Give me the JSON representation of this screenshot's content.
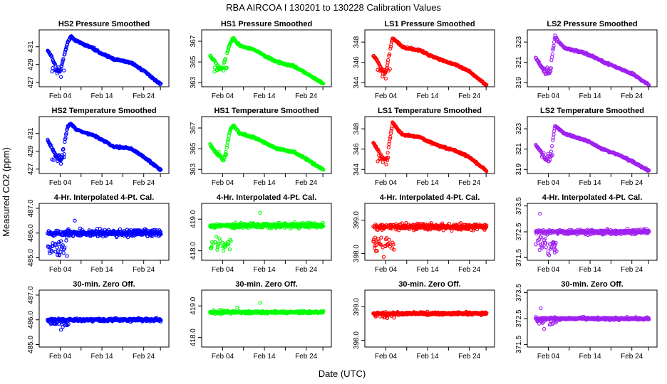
{
  "figure": {
    "title": "RBA   AIRCOA I   130201 to 130228   Calibration Values",
    "ylabel": "Measured CO2 (ppm)",
    "xlabel": "Date (UTC)"
  },
  "colors": {
    "HS2": "#0000ff",
    "HS1": "#00ff00",
    "LS1": "#ff0000",
    "LS2": "#a020f0"
  },
  "chart_data": [
    {
      "type": "scatter",
      "title": "HS2 Pressure Smoothed",
      "row": 0,
      "col": 0,
      "series": "HS2",
      "color_key": "HS2",
      "pattern": "smoothed",
      "x_ticks": [
        "Feb 04",
        "Feb 14",
        "Feb 24"
      ],
      "y_ticks": [
        "427",
        "429",
        "431"
      ],
      "ylim": [
        426.5,
        432.9
      ],
      "knots": [
        [
          1,
          430.6
        ],
        [
          2,
          429.8
        ],
        [
          3.3,
          428.4
        ],
        [
          4,
          428.2
        ],
        [
          5.6,
          431.2
        ],
        [
          6.5,
          432.2
        ],
        [
          8,
          431.6
        ],
        [
          12,
          430.8
        ],
        [
          14,
          430.2
        ],
        [
          17,
          429.6
        ],
        [
          21,
          429.2
        ],
        [
          24,
          428.3
        ],
        [
          28,
          426.8
        ]
      ],
      "dip": [
        [
          2.2,
          428.6
        ],
        [
          3.3,
          428
        ],
        [
          4.2,
          427.6
        ]
      ],
      "dip_level": 428.4
    },
    {
      "type": "scatter",
      "title": "HS1 Pressure Smoothed",
      "row": 0,
      "col": 1,
      "series": "HS1",
      "color_key": "HS1",
      "pattern": "smoothed",
      "x_ticks": [
        "Feb 04",
        "Feb 14",
        "Feb 24"
      ],
      "y_ticks": [
        "363",
        "365",
        "367"
      ],
      "ylim": [
        362.6,
        368.1
      ],
      "knots": [
        [
          1,
          365.6
        ],
        [
          2,
          365.1
        ],
        [
          3.3,
          364.4
        ],
        [
          4,
          364.4
        ],
        [
          5.6,
          366.6
        ],
        [
          6.5,
          367.3
        ],
        [
          8,
          366.6
        ],
        [
          12,
          366.1
        ],
        [
          14,
          365.6
        ],
        [
          17,
          365
        ],
        [
          21,
          364.6
        ],
        [
          24,
          363.9
        ],
        [
          28,
          362.9
        ]
      ],
      "dip": [],
      "dip_level": 364.4
    },
    {
      "type": "scatter",
      "title": "LS1 Pressure Smoothed",
      "row": 0,
      "col": 2,
      "series": "LS1",
      "color_key": "LS1",
      "pattern": "smoothed",
      "x_ticks": [
        "Feb 04",
        "Feb 14",
        "Feb 24"
      ],
      "y_ticks": [
        "344",
        "346",
        "348"
      ],
      "ylim": [
        343.6,
        349.2
      ],
      "knots": [
        [
          1,
          346.7
        ],
        [
          2,
          346.1
        ],
        [
          3.3,
          345.1
        ],
        [
          4,
          345
        ],
        [
          5.6,
          348.4
        ],
        [
          6.5,
          348.1
        ],
        [
          8,
          347.5
        ],
        [
          12,
          347.2
        ],
        [
          14,
          346.8
        ],
        [
          17,
          346.3
        ],
        [
          21,
          345.7
        ],
        [
          24,
          345.1
        ],
        [
          28,
          343.8
        ]
      ],
      "dip": [
        [
          3.2,
          344.6
        ],
        [
          4,
          344.4
        ]
      ],
      "dip_level": 345.1
    },
    {
      "type": "scatter",
      "title": "LS2 Pressure Smoothed",
      "row": 0,
      "col": 3,
      "series": "LS2",
      "color_key": "LS2",
      "pattern": "smoothed",
      "x_ticks": [
        "Feb 04",
        "Feb 14",
        "Feb 24"
      ],
      "y_ticks": [
        "319",
        "321",
        "323"
      ],
      "ylim": [
        318.6,
        324.2
      ],
      "knots": [
        [
          1,
          321.5
        ],
        [
          2,
          320.8
        ],
        [
          3.3,
          319.9
        ],
        [
          4.3,
          319.9
        ],
        [
          5.6,
          323.6
        ],
        [
          6.5,
          323
        ],
        [
          8,
          322.4
        ],
        [
          12,
          322
        ],
        [
          14,
          321.7
        ],
        [
          17,
          321.1
        ],
        [
          21,
          320.4
        ],
        [
          24,
          319.9
        ],
        [
          28,
          318.8
        ]
      ],
      "dip": [],
      "dip_level": 320.3
    },
    {
      "type": "scatter",
      "title": "HS2 Temperature Smoothed",
      "row": 1,
      "col": 0,
      "series": "HS2",
      "color_key": "HS2",
      "pattern": "smoothed",
      "x_ticks": [
        "Feb 04",
        "Feb 14",
        "Feb 24"
      ],
      "y_ticks": [
        "427",
        "429",
        "431"
      ],
      "ylim": [
        426.5,
        432.9
      ],
      "knots": [
        [
          1,
          430.2
        ],
        [
          2,
          429.4
        ],
        [
          3.3,
          428.2
        ],
        [
          4.2,
          428
        ],
        [
          5.8,
          431.8
        ],
        [
          6.6,
          432.1
        ],
        [
          8,
          431.4
        ],
        [
          12,
          430.8
        ],
        [
          14,
          430.3
        ],
        [
          17,
          429.5
        ],
        [
          21,
          429.3
        ],
        [
          24,
          428.4
        ],
        [
          28,
          426.9
        ]
      ],
      "dip": [
        [
          2.4,
          428
        ],
        [
          3.4,
          427.9
        ],
        [
          4.2,
          427.6
        ]
      ],
      "dip_level": 428.4
    },
    {
      "type": "scatter",
      "title": "HS1 Temperature Smoothed",
      "row": 1,
      "col": 1,
      "series": "HS1",
      "color_key": "HS1",
      "pattern": "smoothed",
      "x_ticks": [
        "Feb 04",
        "Feb 14",
        "Feb 24"
      ],
      "y_ticks": [
        "363",
        "365",
        "367"
      ],
      "ylim": [
        362.6,
        368.1
      ],
      "knots": [
        [
          1,
          365.4
        ],
        [
          2,
          364.8
        ],
        [
          3.3,
          364.3
        ],
        [
          4.3,
          363.8
        ],
        [
          5.8,
          366.8
        ],
        [
          6.5,
          367.3
        ],
        [
          8,
          366.5
        ],
        [
          12,
          366
        ],
        [
          14,
          365.6
        ],
        [
          17,
          365
        ],
        [
          21,
          364.7
        ],
        [
          24,
          364
        ],
        [
          28,
          363
        ]
      ],
      "dip": [],
      "dip_level": 364.4
    },
    {
      "type": "scatter",
      "title": "LS1 Temperature Smoothed",
      "row": 1,
      "col": 2,
      "series": "LS1",
      "color_key": "LS1",
      "pattern": "smoothed",
      "x_ticks": [
        "Feb 04",
        "Feb 14",
        "Feb 24"
      ],
      "y_ticks": [
        "344",
        "346",
        "348"
      ],
      "ylim": [
        343.6,
        349.2
      ],
      "knots": [
        [
          1,
          346.6
        ],
        [
          2,
          346
        ],
        [
          3.3,
          345.1
        ],
        [
          4.2,
          345
        ],
        [
          5.6,
          348.6
        ],
        [
          6.5,
          348.1
        ],
        [
          8,
          347.4
        ],
        [
          12,
          347.2
        ],
        [
          14,
          346.8
        ],
        [
          17,
          346.3
        ],
        [
          21,
          345.8
        ],
        [
          24,
          345.2
        ],
        [
          28,
          343.9
        ]
      ],
      "dip": [
        [
          3.3,
          344.7
        ],
        [
          4.1,
          344.5
        ]
      ],
      "dip_level": 345.1
    },
    {
      "type": "scatter",
      "title": "LS2 Temperature Smoothed",
      "row": 1,
      "col": 3,
      "series": "LS2",
      "color_key": "LS2",
      "pattern": "smoothed",
      "x_ticks": [
        "Feb 04",
        "Feb 14",
        "Feb 24"
      ],
      "y_ticks": [
        "319",
        "321",
        "323"
      ],
      "ylim": [
        318.6,
        324.2
      ],
      "knots": [
        [
          1,
          321.4
        ],
        [
          2,
          320.9
        ],
        [
          3.3,
          320
        ],
        [
          4.3,
          319.8
        ],
        [
          5.6,
          323.3
        ],
        [
          6.5,
          323
        ],
        [
          8,
          322.5
        ],
        [
          12,
          322
        ],
        [
          14,
          321.7
        ],
        [
          17,
          321
        ],
        [
          21,
          320.4
        ],
        [
          24,
          319.8
        ],
        [
          28,
          318.9
        ]
      ],
      "dip": [],
      "dip_level": 320.3
    },
    {
      "type": "scatter",
      "title": "4-Hr. Interpolated 4-Pt. Cal.",
      "row": 2,
      "col": 0,
      "series": "HS2",
      "color_key": "HS2",
      "pattern": "band",
      "x_ticks": [
        "Feb 04",
        "Feb 14",
        "Feb 24"
      ],
      "y_ticks": [
        "485.0",
        "486.0",
        "487.0"
      ],
      "ylim": [
        484.9,
        487.2
      ],
      "center": 486.0,
      "spread": 0.2,
      "early_low": 485.4,
      "early_spread": 0.45,
      "outliers": [
        [
          3.8,
          485.1
        ],
        [
          7.5,
          486.5
        ]
      ]
    },
    {
      "type": "scatter",
      "title": "4-Hr. Interpolated 4-Pt. Cal.",
      "row": 2,
      "col": 1,
      "series": "HS1",
      "color_key": "HS1",
      "pattern": "band",
      "x_ticks": [
        "Feb 04",
        "Feb 14",
        "Feb 24"
      ],
      "y_ticks": [
        "418.0",
        "419.0"
      ],
      "ylim": [
        417.7,
        419.5
      ],
      "center": 418.8,
      "spread": 0.1,
      "early_low": 418.2,
      "early_spread": 0.25,
      "outliers": [
        [
          13,
          419.2
        ]
      ]
    },
    {
      "type": "scatter",
      "title": "4-Hr. Interpolated 4-Pt. Cal.",
      "row": 2,
      "col": 2,
      "series": "LS1",
      "color_key": "LS1",
      "pattern": "band",
      "x_ticks": [
        "Feb 04",
        "Feb 14",
        "Feb 24"
      ],
      "y_ticks": [
        "398.0",
        "399.0"
      ],
      "ylim": [
        397.8,
        399.5
      ],
      "center": 398.8,
      "spread": 0.12,
      "early_low": 398.3,
      "early_spread": 0.3,
      "outliers": [
        [
          3.5,
          397.9
        ]
      ]
    },
    {
      "type": "scatter",
      "title": "4-Hr. Interpolated 4-Pt. Cal.",
      "row": 2,
      "col": 3,
      "series": "LS2",
      "color_key": "LS2",
      "pattern": "band",
      "x_ticks": [
        "Feb 04",
        "Feb 14",
        "Feb 24"
      ],
      "y_ticks": [
        "371.5",
        "372.5",
        "373.5"
      ],
      "ylim": [
        371.4,
        373.6
      ],
      "center": 372.5,
      "spread": 0.12,
      "early_low": 372.0,
      "early_spread": 0.4,
      "outliers": [
        [
          2,
          373.2
        ],
        [
          4.2,
          371.6
        ],
        [
          5.5,
          371.8
        ]
      ]
    },
    {
      "type": "scatter",
      "title": "30-min. Zero Off.",
      "row": 3,
      "col": 0,
      "series": "HS2",
      "color_key": "HS2",
      "pattern": "band",
      "x_ticks": [
        "Feb 04",
        "Feb 14",
        "Feb 24"
      ],
      "y_ticks": [
        "485.0",
        "486.0",
        "487.0"
      ],
      "ylim": [
        484.9,
        487.2
      ],
      "center": 486.0,
      "spread": 0.08,
      "early_low": 485.9,
      "early_spread": 0.2,
      "outliers": [
        [
          4.2,
          485.6
        ],
        [
          4.6,
          485.7
        ]
      ]
    },
    {
      "type": "scatter",
      "title": "30-min. Zero Off.",
      "row": 3,
      "col": 1,
      "series": "HS1",
      "color_key": "HS1",
      "pattern": "band",
      "x_ticks": [
        "Feb 04",
        "Feb 14",
        "Feb 24"
      ],
      "y_ticks": [
        "418.0",
        "419.0"
      ],
      "ylim": [
        417.7,
        419.5
      ],
      "center": 418.8,
      "spread": 0.05,
      "early_low": 418.8,
      "early_spread": 0.08,
      "outliers": [
        [
          13,
          419.1
        ],
        [
          7.5,
          418.95
        ]
      ]
    },
    {
      "type": "scatter",
      "title": "30-min. Zero Off.",
      "row": 3,
      "col": 2,
      "series": "LS1",
      "color_key": "LS1",
      "pattern": "band",
      "x_ticks": [
        "Feb 04",
        "Feb 14",
        "Feb 24"
      ],
      "y_ticks": [
        "398.0",
        "399.0"
      ],
      "ylim": [
        397.8,
        399.5
      ],
      "center": 398.8,
      "spread": 0.05,
      "early_low": 398.75,
      "early_spread": 0.1,
      "outliers": []
    },
    {
      "type": "scatter",
      "title": "30-min. Zero Off.",
      "row": 3,
      "col": 3,
      "series": "LS2",
      "color_key": "LS2",
      "pattern": "band",
      "x_ticks": [
        "Feb 04",
        "Feb 14",
        "Feb 24"
      ],
      "y_ticks": [
        "371.5",
        "372.5",
        "373.5"
      ],
      "ylim": [
        371.4,
        373.6
      ],
      "center": 372.5,
      "spread": 0.06,
      "early_low": 372.4,
      "early_spread": 0.15,
      "outliers": [
        [
          2.2,
          372.9
        ],
        [
          3,
          372.1
        ]
      ]
    }
  ]
}
